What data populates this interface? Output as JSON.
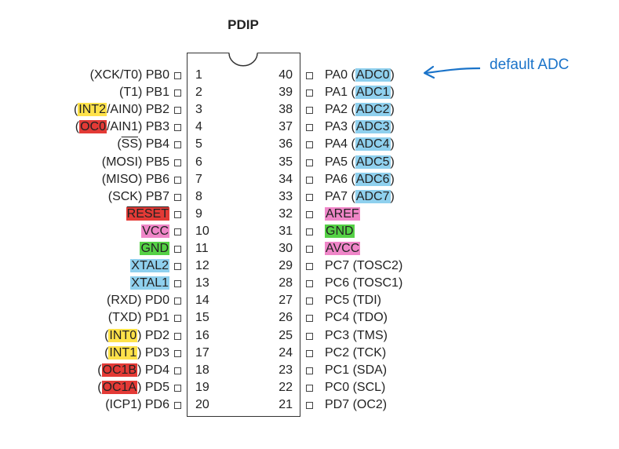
{
  "diagram": {
    "title": "PDIP",
    "annotation": "default ADC",
    "colors": {
      "yellow": "#ffe24a",
      "red": "#e33a36",
      "blue": "#8fd0ee",
      "pink": "#ef86c8",
      "green": "#55d146",
      "annotation": "#1a73c9"
    },
    "left_pins": [
      {
        "num": "1",
        "parts": [
          {
            "t": "(XCK/T0) PB0"
          }
        ]
      },
      {
        "num": "2",
        "parts": [
          {
            "t": "(T1) PB1"
          }
        ]
      },
      {
        "num": "3",
        "parts": [
          {
            "t": "("
          },
          {
            "t": "INT2",
            "hl": "yellow"
          },
          {
            "t": "/AIN0) PB2"
          }
        ]
      },
      {
        "num": "4",
        "parts": [
          {
            "t": "("
          },
          {
            "t": "OC0",
            "hl": "red"
          },
          {
            "t": "/AIN1) PB3"
          }
        ]
      },
      {
        "num": "5",
        "parts": [
          {
            "t": "("
          },
          {
            "t": "SS",
            "ov": true
          },
          {
            "t": ") PB4"
          }
        ]
      },
      {
        "num": "6",
        "parts": [
          {
            "t": "(MOSI) PB5"
          }
        ]
      },
      {
        "num": "7",
        "parts": [
          {
            "t": "(MISO) PB6"
          }
        ]
      },
      {
        "num": "8",
        "parts": [
          {
            "t": "(SCK) PB7"
          }
        ]
      },
      {
        "num": "9",
        "parts": [
          {
            "t": "RESET",
            "hl": "red",
            "ov": true
          }
        ]
      },
      {
        "num": "10",
        "parts": [
          {
            "t": "VCC",
            "hl": "pink"
          }
        ]
      },
      {
        "num": "11",
        "parts": [
          {
            "t": "GND",
            "hl": "green"
          }
        ]
      },
      {
        "num": "12",
        "parts": [
          {
            "t": "XTAL2",
            "hl": "blue"
          }
        ]
      },
      {
        "num": "13",
        "parts": [
          {
            "t": "XTAL1",
            "hl": "blue"
          }
        ]
      },
      {
        "num": "14",
        "parts": [
          {
            "t": "(RXD) PD0"
          }
        ]
      },
      {
        "num": "15",
        "parts": [
          {
            "t": "(TXD) PD1"
          }
        ]
      },
      {
        "num": "16",
        "parts": [
          {
            "t": "("
          },
          {
            "t": "INT0",
            "hl": "yellow"
          },
          {
            "t": ") PD2"
          }
        ]
      },
      {
        "num": "17",
        "parts": [
          {
            "t": "("
          },
          {
            "t": "INT1",
            "hl": "yellow"
          },
          {
            "t": ") PD3"
          }
        ]
      },
      {
        "num": "18",
        "parts": [
          {
            "t": "("
          },
          {
            "t": "OC1B",
            "hl": "red"
          },
          {
            "t": ") PD4"
          }
        ]
      },
      {
        "num": "19",
        "parts": [
          {
            "t": "("
          },
          {
            "t": "OC1A",
            "hl": "red"
          },
          {
            "t": ") PD5"
          }
        ]
      },
      {
        "num": "20",
        "parts": [
          {
            "t": "(ICP1) PD6"
          }
        ]
      }
    ],
    "right_pins": [
      {
        "num": "40",
        "parts": [
          {
            "t": "PA0 ("
          },
          {
            "t": "ADC0",
            "hl": "blue"
          },
          {
            "t": ")"
          }
        ]
      },
      {
        "num": "39",
        "parts": [
          {
            "t": "PA1 ("
          },
          {
            "t": "ADC1",
            "hl": "blue"
          },
          {
            "t": ")"
          }
        ]
      },
      {
        "num": "38",
        "parts": [
          {
            "t": "PA2 ("
          },
          {
            "t": "ADC2",
            "hl": "blue"
          },
          {
            "t": ")"
          }
        ]
      },
      {
        "num": "37",
        "parts": [
          {
            "t": "PA3 ("
          },
          {
            "t": "ADC3",
            "hl": "blue"
          },
          {
            "t": ")"
          }
        ]
      },
      {
        "num": "36",
        "parts": [
          {
            "t": "PA4 ("
          },
          {
            "t": "ADC4",
            "hl": "blue"
          },
          {
            "t": ")"
          }
        ]
      },
      {
        "num": "35",
        "parts": [
          {
            "t": "PA5 ("
          },
          {
            "t": "ADC5",
            "hl": "blue"
          },
          {
            "t": ")"
          }
        ]
      },
      {
        "num": "34",
        "parts": [
          {
            "t": "PA6 ("
          },
          {
            "t": "ADC6",
            "hl": "blue"
          },
          {
            "t": ")"
          }
        ]
      },
      {
        "num": "33",
        "parts": [
          {
            "t": "PA7 ("
          },
          {
            "t": "ADC7",
            "hl": "blue"
          },
          {
            "t": ")"
          }
        ]
      },
      {
        "num": "32",
        "parts": [
          {
            "t": "AREF",
            "hl": "pink"
          }
        ]
      },
      {
        "num": "31",
        "parts": [
          {
            "t": "GND",
            "hl": "green"
          }
        ]
      },
      {
        "num": "30",
        "parts": [
          {
            "t": "AVCC",
            "hl": "pink"
          }
        ]
      },
      {
        "num": "29",
        "parts": [
          {
            "t": "PC7 (TOSC2)"
          }
        ]
      },
      {
        "num": "28",
        "parts": [
          {
            "t": "PC6 (TOSC1)"
          }
        ]
      },
      {
        "num": "27",
        "parts": [
          {
            "t": "PC5 (TDI)"
          }
        ]
      },
      {
        "num": "26",
        "parts": [
          {
            "t": "PC4 (TDO)"
          }
        ]
      },
      {
        "num": "25",
        "parts": [
          {
            "t": "PC3 (TMS)"
          }
        ]
      },
      {
        "num": "24",
        "parts": [
          {
            "t": "PC2 (TCK)"
          }
        ]
      },
      {
        "num": "23",
        "parts": [
          {
            "t": "PC1 (SDA)"
          }
        ]
      },
      {
        "num": "22",
        "parts": [
          {
            "t": "PC0 (SCL)"
          }
        ]
      },
      {
        "num": "21",
        "parts": [
          {
            "t": "PD7 (OC2)"
          }
        ]
      }
    ]
  }
}
